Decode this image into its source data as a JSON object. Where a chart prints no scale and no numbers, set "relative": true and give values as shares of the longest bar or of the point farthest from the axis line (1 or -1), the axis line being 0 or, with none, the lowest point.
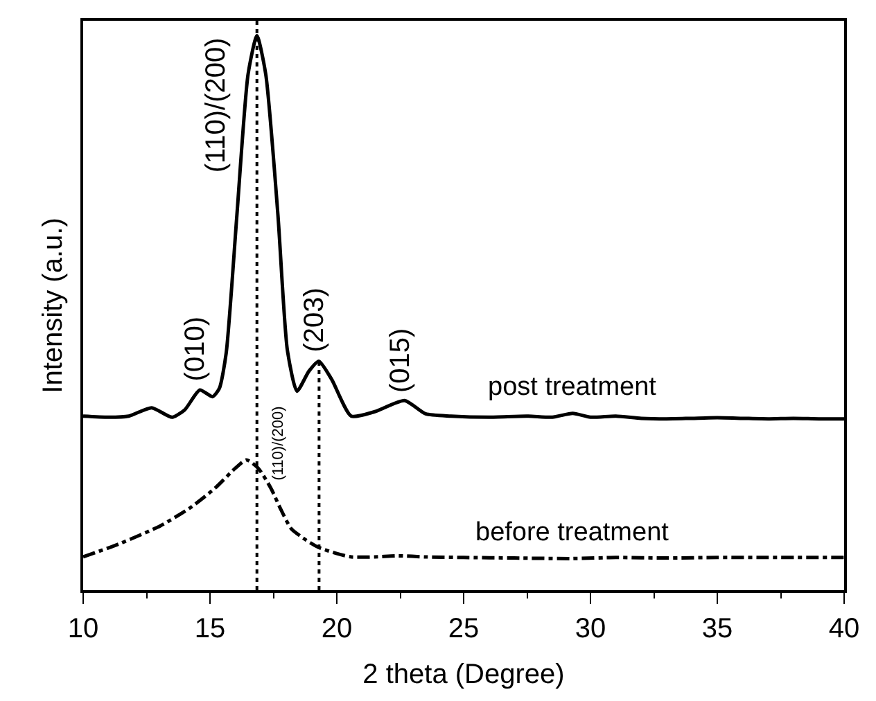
{
  "chart_data": {
    "type": "line",
    "relative": true,
    "xlabel": "2 theta (Degree)",
    "ylabel": "Intensity (a.u.)",
    "xlim": [
      10,
      40
    ],
    "xticks": [
      10,
      15,
      20,
      25,
      30,
      35,
      40
    ],
    "legend": false,
    "marker": "none",
    "series": [
      {
        "name": "post treatment",
        "color": "#000000",
        "line_style": "solid",
        "x": [
          10,
          11,
          11.8,
          12.7,
          13.5,
          14,
          14.6,
          15.1,
          15.37,
          15.64,
          16.06,
          16.5,
          16.85,
          17.2,
          17.68,
          18.05,
          18.43,
          18.9,
          19.29,
          19.8,
          20.57,
          21.5,
          22.67,
          23.5,
          24.5,
          26,
          27.5,
          28.5,
          29.3,
          30,
          31,
          32,
          33,
          34,
          35,
          36,
          37,
          38,
          39,
          40
        ],
        "values": [
          0.314,
          0.312,
          0.314,
          0.329,
          0.312,
          0.325,
          0.361,
          0.349,
          0.364,
          0.428,
          0.676,
          0.93,
          1.0,
          0.93,
          0.676,
          0.433,
          0.359,
          0.395,
          0.413,
          0.38,
          0.314,
          0.322,
          0.342,
          0.318,
          0.314,
          0.312,
          0.314,
          0.312,
          0.319,
          0.312,
          0.314,
          0.31,
          0.309,
          0.31,
          0.311,
          0.31,
          0.309,
          0.31,
          0.309,
          0.309
        ]
      },
      {
        "name": "before treatment",
        "color": "#000000",
        "line_style": "dashdot",
        "x": [
          10,
          11.5,
          13.04,
          14.2,
          15.2,
          16,
          16.44,
          16.9,
          17.4,
          17.8,
          18.2,
          18.8,
          19.29,
          20,
          20.57,
          21.5,
          22.4,
          23.5,
          25,
          27,
          29.3,
          31,
          33,
          35,
          37,
          40
        ],
        "values": [
          0.06,
          0.085,
          0.116,
          0.148,
          0.184,
          0.22,
          0.235,
          0.22,
          0.184,
          0.145,
          0.111,
          0.09,
          0.077,
          0.066,
          0.06,
          0.06,
          0.062,
          0.06,
          0.059,
          0.058,
          0.057,
          0.059,
          0.058,
          0.059,
          0.059,
          0.059
        ]
      }
    ],
    "ref_lines": [
      {
        "axis": "x",
        "value": 16.85,
        "line_style": "dotted",
        "color": "#000000"
      },
      {
        "axis": "x",
        "value": 19.3,
        "line_style": "dotted",
        "color": "#000000"
      }
    ],
    "annotations": [
      {
        "text": "(110)/(200)",
        "x": 16.85,
        "y": 1.0
      },
      {
        "text": "(010)",
        "x": 14.6,
        "y": 0.361
      },
      {
        "text": "(203)",
        "x": 19.29,
        "y": 0.413
      },
      {
        "text": "(015)",
        "x": 22.67,
        "y": 0.342
      },
      {
        "text": "(110)/(200)",
        "x": 17.4,
        "y": 0.184
      }
    ]
  }
}
